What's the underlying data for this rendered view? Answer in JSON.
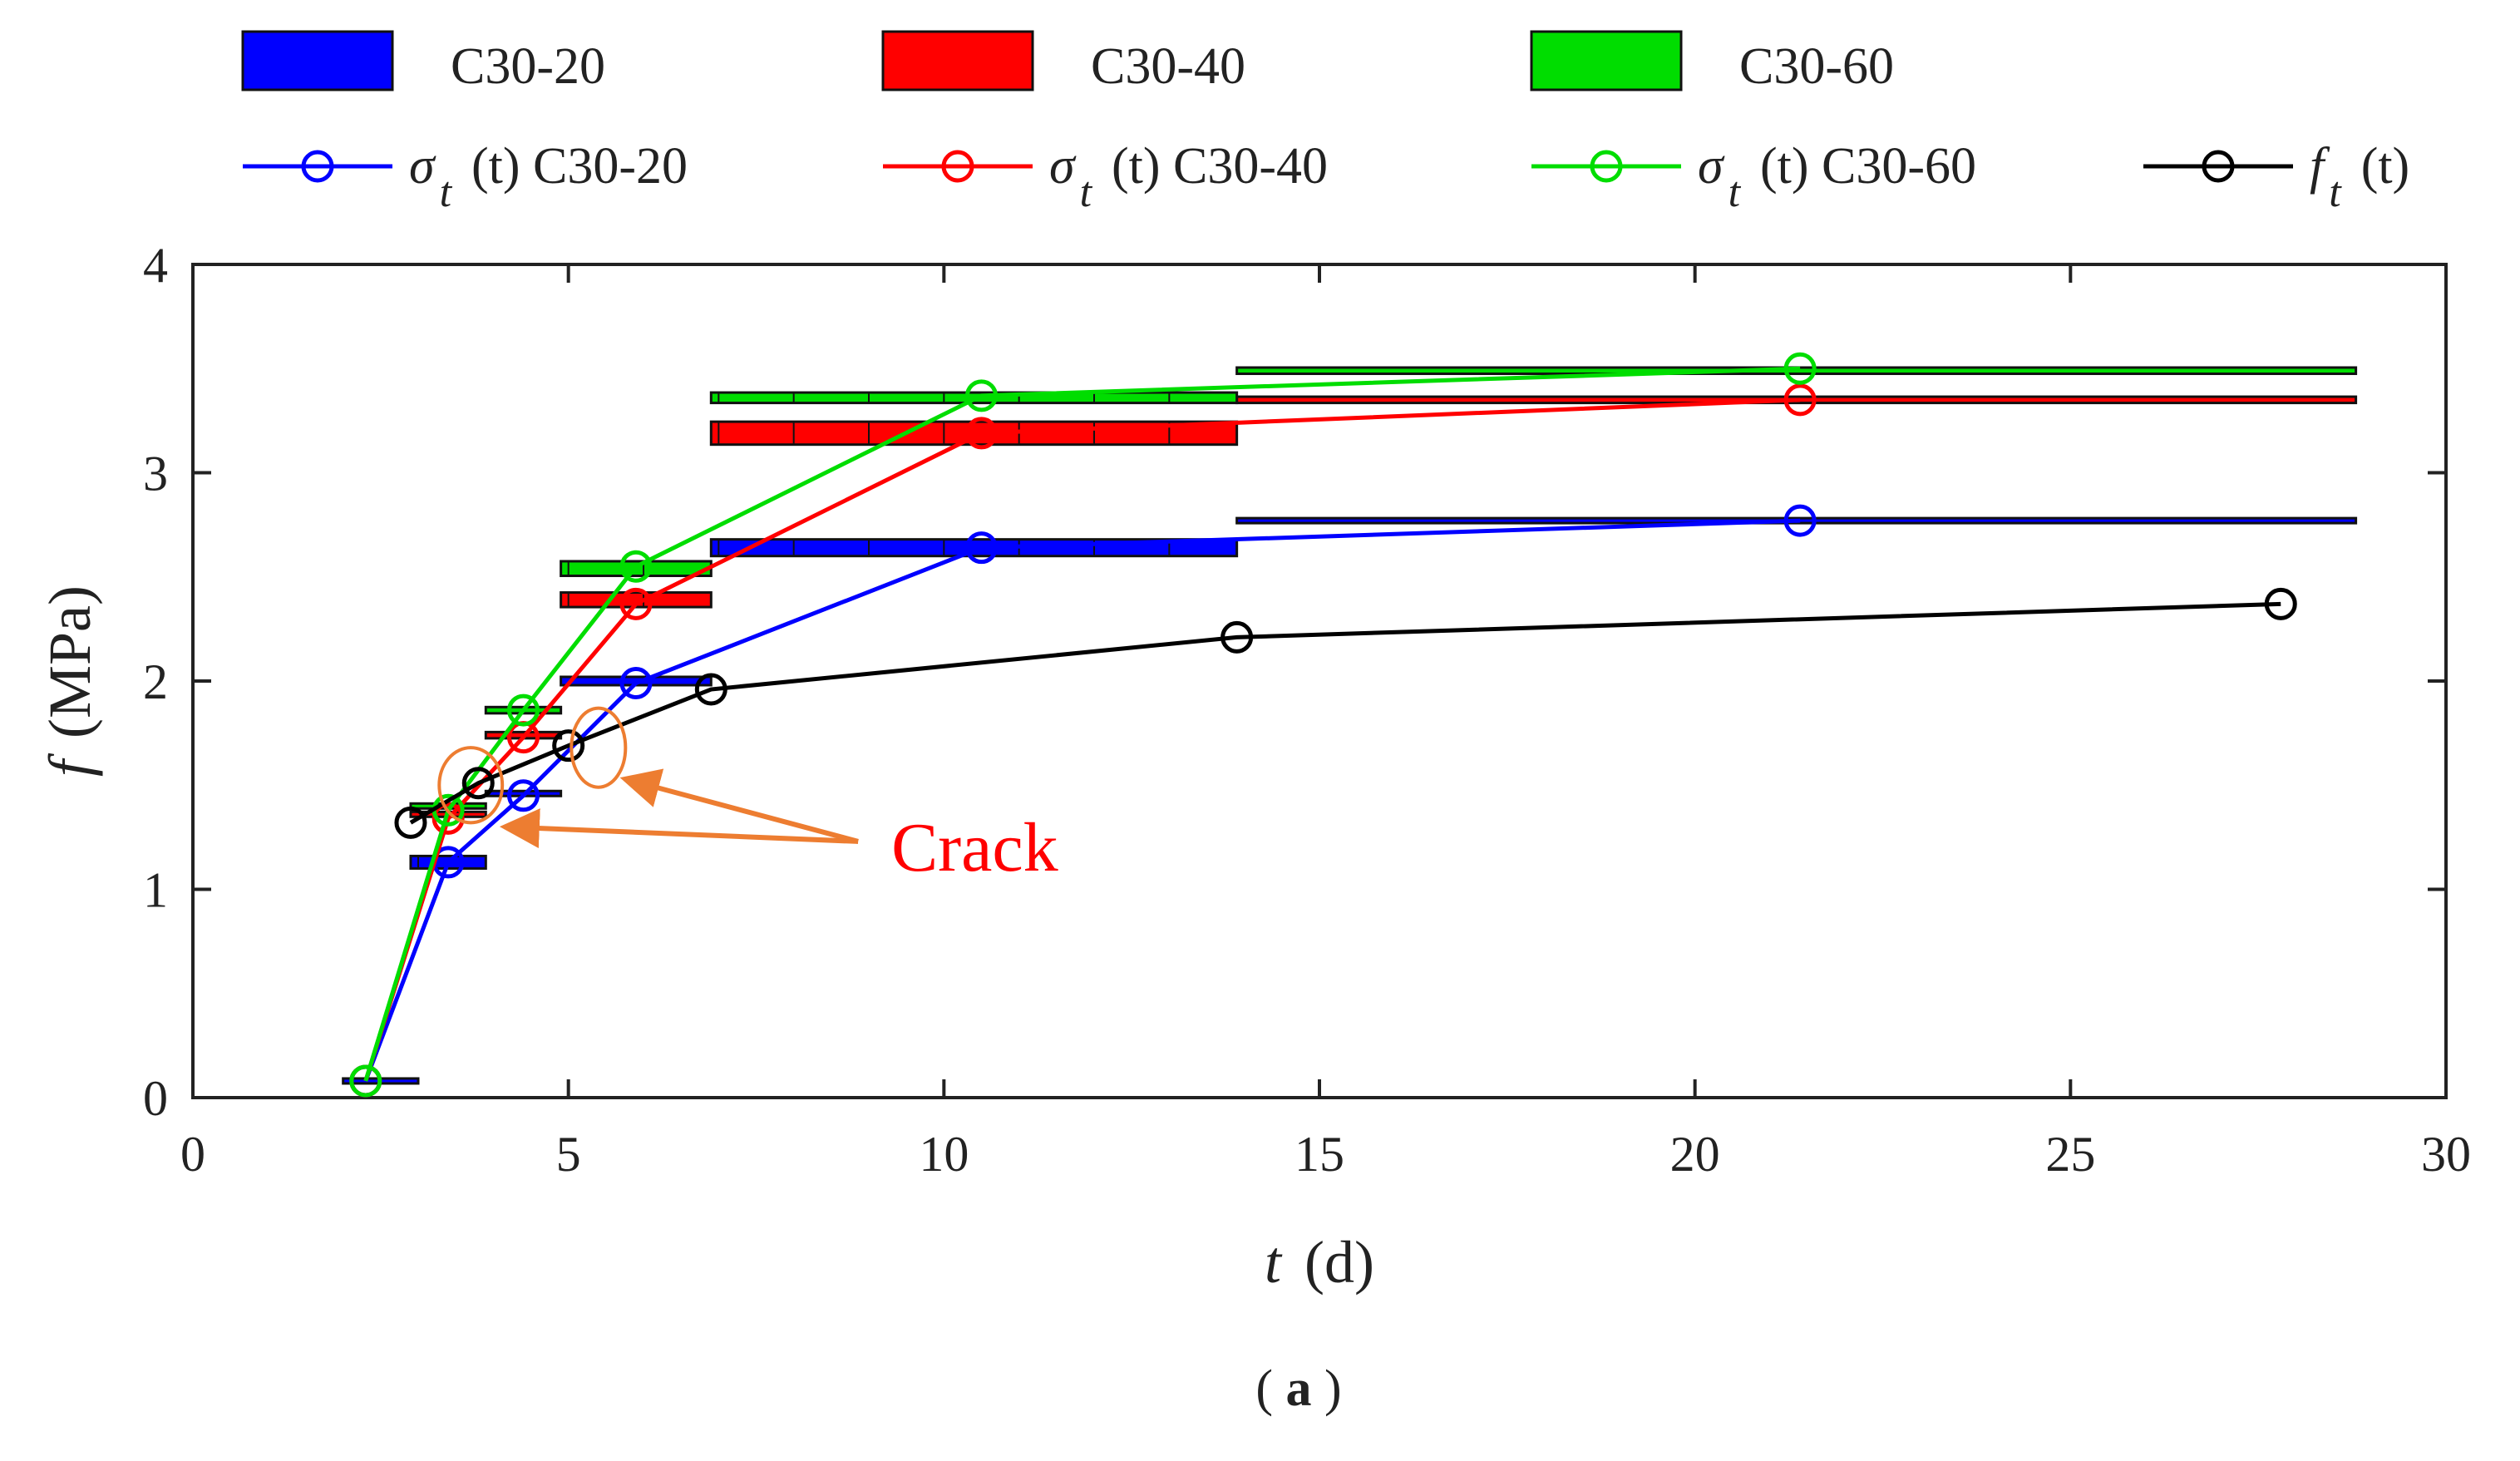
{
  "chart_data": {
    "type": "line",
    "panel_label": "a",
    "axes": {
      "x": {
        "label_symbol": "t",
        "label_unit": "(d)",
        "lim": [
          0,
          30
        ],
        "ticks": [
          0,
          5,
          10,
          15,
          20,
          25,
          30
        ]
      },
      "y": {
        "label_symbol": "f",
        "label_unit": "(MPa)",
        "lim": [
          0,
          4
        ],
        "ticks": [
          0,
          1,
          2,
          3,
          4
        ]
      }
    },
    "colors": {
      "C30-20": "#0000ff",
      "C30-40": "#ff0000",
      "C30-60": "#00dd00",
      "ft": "#000000",
      "annotation": "#ed7d31",
      "crack_text": "#ff0000"
    },
    "legend": {
      "bars": [
        "C30-20",
        "C30-40",
        "C30-60"
      ],
      "lines": [
        {
          "sym": "σ",
          "sub": "t",
          "text": "(t) C30-20"
        },
        {
          "sym": "σ",
          "sub": "t",
          "text": "(t) C30-40"
        },
        {
          "sym": "σ",
          "sub": "t",
          "text": "(t) C30-60"
        },
        {
          "sym": "f",
          "sub": "t",
          "text": "(t)"
        }
      ]
    },
    "series": [
      {
        "name": "σt(t) C30-20",
        "color_key": "C30-20",
        "x": [
          2.3,
          3.4,
          4.4,
          5.9,
          10.5,
          21.4
        ],
        "y": [
          0.08,
          1.13,
          1.45,
          1.99,
          2.64,
          2.77
        ]
      },
      {
        "name": "σt(t) C30-40",
        "color_key": "C30-40",
        "x": [
          2.3,
          3.4,
          4.4,
          5.9,
          10.5,
          21.4
        ],
        "y": [
          0.08,
          1.34,
          1.73,
          2.37,
          3.19,
          3.35
        ]
      },
      {
        "name": "σt(t) C30-60",
        "color_key": "C30-60",
        "x": [
          2.3,
          3.4,
          4.4,
          5.9,
          10.5,
          21.4
        ],
        "y": [
          0.08,
          1.38,
          1.86,
          2.55,
          3.37,
          3.5
        ]
      },
      {
        "name": "ft(t)",
        "color_key": "ft",
        "x": [
          2.9,
          3.8,
          5.0,
          6.9,
          13.9,
          27.8
        ],
        "y": [
          1.32,
          1.51,
          1.69,
          1.96,
          2.21,
          2.37
        ]
      }
    ],
    "bars": [
      {
        "group": "C30-20",
        "x0": 2.0,
        "x1": 3.0,
        "y": 0.08,
        "h": 0.02
      },
      {
        "group": "C30-20",
        "x0": 2.9,
        "x1": 3.9,
        "y": 1.13,
        "h": 0.06
      },
      {
        "group": "C30-20",
        "x0": 3.9,
        "x1": 4.9,
        "y": 1.46,
        "h": 0.02
      },
      {
        "group": "C30-20",
        "x0": 4.9,
        "x1": 6.9,
        "y": 2.0,
        "h": 0.04
      },
      {
        "group": "C30-20",
        "x0": 6.9,
        "x1": 13.9,
        "y": 2.64,
        "h": 0.08
      },
      {
        "group": "C30-20",
        "x0": 13.9,
        "x1": 28.8,
        "y": 2.77,
        "h": 0.02
      },
      {
        "group": "C30-40",
        "x0": 2.9,
        "x1": 3.9,
        "y": 1.36,
        "h": 0.02
      },
      {
        "group": "C30-40",
        "x0": 3.9,
        "x1": 4.9,
        "y": 1.74,
        "h": 0.03
      },
      {
        "group": "C30-40",
        "x0": 4.9,
        "x1": 6.9,
        "y": 2.39,
        "h": 0.07
      },
      {
        "group": "C30-40",
        "x0": 6.9,
        "x1": 13.9,
        "y": 3.19,
        "h": 0.11
      },
      {
        "group": "C30-40",
        "x0": 13.9,
        "x1": 28.8,
        "y": 3.35,
        "h": 0.03
      },
      {
        "group": "C30-60",
        "x0": 2.9,
        "x1": 3.9,
        "y": 1.4,
        "h": 0.02
      },
      {
        "group": "C30-60",
        "x0": 3.9,
        "x1": 4.9,
        "y": 1.86,
        "h": 0.03
      },
      {
        "group": "C30-60",
        "x0": 4.9,
        "x1": 6.9,
        "y": 2.54,
        "h": 0.07
      },
      {
        "group": "C30-60",
        "x0": 6.9,
        "x1": 13.9,
        "y": 3.36,
        "h": 0.05
      },
      {
        "group": "C30-60",
        "x0": 13.9,
        "x1": 28.8,
        "y": 3.49,
        "h": 0.03
      }
    ],
    "annotations": {
      "crack_text": "Crack",
      "text_anchor": {
        "x": 9.3,
        "y": 1.13
      },
      "ellipses": [
        {
          "cx": 3.7,
          "cy": 1.5,
          "rx": 0.42,
          "ry": 0.18
        },
        {
          "cx": 5.4,
          "cy": 1.68,
          "rx": 0.36,
          "ry": 0.19
        }
      ],
      "arrow_tips": [
        {
          "x": 4.15,
          "y": 1.3
        },
        {
          "x": 5.75,
          "y": 1.53
        }
      ]
    }
  }
}
